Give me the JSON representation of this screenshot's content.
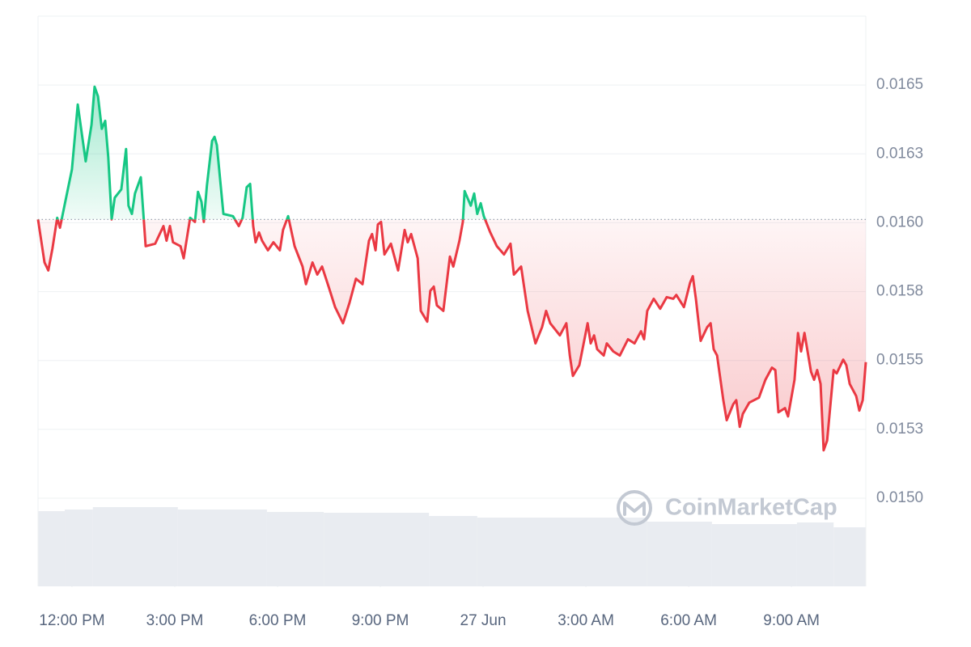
{
  "chart_data": {
    "type": "line",
    "watermark": "CoinMarketCap",
    "grid": true,
    "colors": {
      "up": "#16c784",
      "down": "#ea3943",
      "volume": "#e9ecf1",
      "watermark": "#c3c9d3"
    },
    "xlim": [
      -0.99,
      23.17
    ],
    "ylim": [
      0.01468,
      0.01675
    ],
    "yticks": [
      {
        "value": 0.015,
        "label": "0.0150"
      },
      {
        "value": 0.01525,
        "label": "0.0153"
      },
      {
        "value": 0.0155,
        "label": "0.0155"
      },
      {
        "value": 0.01575,
        "label": "0.0158"
      },
      {
        "value": 0.016,
        "label": "0.0160"
      },
      {
        "value": 0.01625,
        "label": "0.0163"
      },
      {
        "value": 0.0165,
        "label": "0.0165"
      }
    ],
    "xticks": [
      {
        "value": 0,
        "label": "12:00 PM"
      },
      {
        "value": 3,
        "label": "3:00 PM"
      },
      {
        "value": 6,
        "label": "6:00 PM"
      },
      {
        "value": 9,
        "label": "9:00 PM"
      },
      {
        "value": 12,
        "label": "27 Jun"
      },
      {
        "value": 15,
        "label": "3:00 AM"
      },
      {
        "value": 18,
        "label": "6:00 AM"
      },
      {
        "value": 21,
        "label": "9:00 AM"
      }
    ],
    "x": [
      -0.99,
      -0.8,
      -0.69,
      -0.57,
      -0.43,
      -0.35,
      -0.17,
      0.0,
      0.17,
      0.4,
      0.57,
      0.66,
      0.76,
      0.87,
      0.97,
      1.06,
      1.16,
      1.25,
      1.44,
      1.58,
      1.65,
      1.75,
      1.84,
      2.01,
      2.15,
      2.43,
      2.67,
      2.76,
      2.86,
      2.95,
      3.17,
      3.26,
      3.45,
      3.59,
      3.68,
      3.78,
      3.85,
      3.94,
      4.09,
      4.16,
      4.23,
      4.42,
      4.7,
      4.87,
      4.98,
      5.1,
      5.2,
      5.29,
      5.36,
      5.46,
      5.55,
      5.72,
      5.88,
      6.07,
      6.16,
      6.31,
      6.5,
      6.73,
      6.83,
      7.02,
      7.16,
      7.3,
      7.49,
      7.68,
      7.91,
      8.1,
      8.29,
      8.48,
      8.67,
      8.76,
      8.86,
      8.93,
      9.02,
      9.12,
      9.31,
      9.52,
      9.71,
      9.8,
      9.9,
      10.09,
      10.18,
      10.37,
      10.46,
      10.56,
      10.65,
      10.84,
      11.03,
      11.13,
      11.31,
      11.41,
      11.46,
      11.64,
      11.74,
      11.83,
      11.93,
      12.02,
      12.21,
      12.4,
      12.61,
      12.8,
      12.9,
      13.11,
      13.3,
      13.53,
      13.72,
      13.84,
      13.96,
      14.24,
      14.43,
      14.53,
      14.62,
      14.81,
      15.05,
      15.14,
      15.24,
      15.33,
      15.52,
      15.61,
      15.8,
      15.99,
      16.23,
      16.42,
      16.61,
      16.7,
      16.79,
      16.98,
      17.17,
      17.36,
      17.55,
      17.64,
      17.86,
      18.04,
      18.12,
      18.21,
      18.35,
      18.54,
      18.64,
      18.73,
      18.83,
      19.01,
      19.11,
      19.3,
      19.39,
      19.49,
      19.58,
      19.77,
      20.05,
      20.24,
      20.43,
      20.53,
      20.62,
      20.81,
      20.9,
      21.09,
      21.19,
      21.28,
      21.38,
      21.57,
      21.66,
      21.75,
      21.85,
      21.94,
      22.04,
      22.23,
      22.32,
      22.51,
      22.6,
      22.7,
      22.89,
      22.98,
      23.08,
      23.17
    ],
    "series": [
      {
        "values": [
          0.016012,
          0.015856,
          0.015827,
          0.015906,
          0.016018,
          0.015982,
          0.016091,
          0.016194,
          0.016429,
          0.016223,
          0.016356,
          0.016494,
          0.016459,
          0.016341,
          0.01637,
          0.016238,
          0.016012,
          0.016091,
          0.016121,
          0.016268,
          0.016062,
          0.016032,
          0.016106,
          0.016165,
          0.015915,
          0.015924,
          0.015988,
          0.015935,
          0.015988,
          0.015929,
          0.015915,
          0.015871,
          0.016018,
          0.016003,
          0.016112,
          0.016076,
          0.016003,
          0.016135,
          0.016297,
          0.016312,
          0.016282,
          0.016032,
          0.016024,
          0.015988,
          0.016018,
          0.016129,
          0.016141,
          0.015988,
          0.015929,
          0.015965,
          0.015935,
          0.0159,
          0.015929,
          0.0159,
          0.015974,
          0.016024,
          0.015915,
          0.015841,
          0.015777,
          0.015856,
          0.015812,
          0.015841,
          0.015768,
          0.015694,
          0.015635,
          0.015709,
          0.015797,
          0.015777,
          0.015935,
          0.015959,
          0.0159,
          0.015994,
          0.016003,
          0.015885,
          0.015924,
          0.015827,
          0.015974,
          0.015929,
          0.015959,
          0.015871,
          0.01568,
          0.015641,
          0.015753,
          0.015768,
          0.0157,
          0.01568,
          0.015877,
          0.015841,
          0.015935,
          0.016003,
          0.016115,
          0.016062,
          0.016106,
          0.016032,
          0.016071,
          0.016024,
          0.015965,
          0.015915,
          0.015885,
          0.015924,
          0.015812,
          0.015841,
          0.01568,
          0.015562,
          0.015621,
          0.01568,
          0.015635,
          0.015591,
          0.015635,
          0.015518,
          0.015444,
          0.015483,
          0.015635,
          0.015562,
          0.015591,
          0.015541,
          0.015518,
          0.015562,
          0.015533,
          0.015518,
          0.015577,
          0.015562,
          0.015606,
          0.015577,
          0.01568,
          0.015724,
          0.015688,
          0.01573,
          0.015724,
          0.015738,
          0.015694,
          0.015782,
          0.015806,
          0.015724,
          0.015571,
          0.015621,
          0.015635,
          0.015541,
          0.015518,
          0.015356,
          0.015283,
          0.015341,
          0.015356,
          0.015259,
          0.015306,
          0.015347,
          0.015365,
          0.01543,
          0.015474,
          0.015465,
          0.015312,
          0.015327,
          0.015297,
          0.01543,
          0.0156,
          0.015533,
          0.0156,
          0.015459,
          0.01543,
          0.015465,
          0.015415,
          0.015174,
          0.015209,
          0.015465,
          0.015453,
          0.015503,
          0.015483,
          0.015415,
          0.015371,
          0.015318,
          0.015356,
          0.015494
        ]
      }
    ],
    "volume": {
      "lim": [
        0,
        100
      ],
      "edges": [
        -0.99,
        -0.21,
        0.61,
        3.09,
        5.69,
        7.35,
        10.42,
        11.83,
        16.79,
        18.68,
        21.16,
        22.23,
        23.17
      ],
      "values": [
        93,
        95,
        98,
        95,
        92,
        91,
        87,
        85,
        80,
        77,
        79,
        73
      ]
    }
  }
}
